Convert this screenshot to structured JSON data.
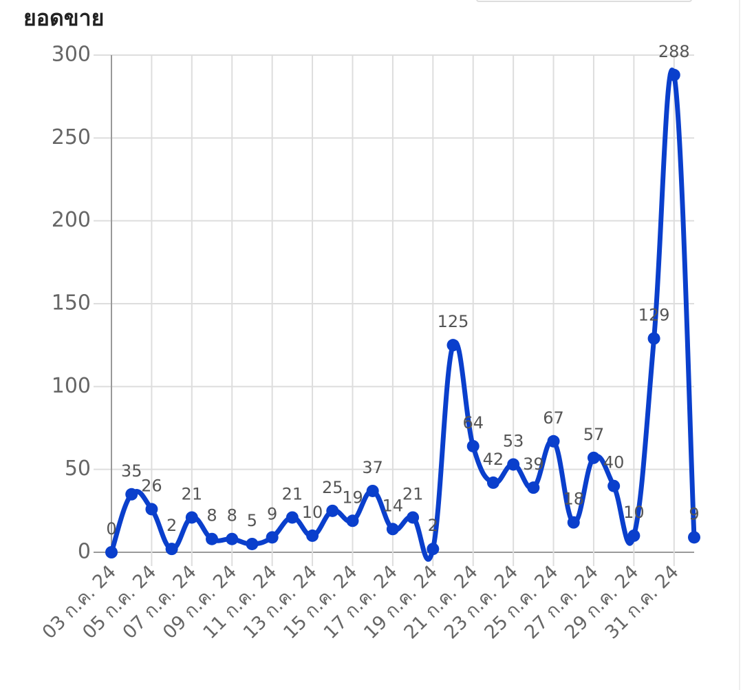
{
  "chart_data": {
    "type": "line",
    "title": "ยอดขาย",
    "categories": [
      "03 ก.ค. 24",
      null,
      "05 ก.ค. 24",
      null,
      "07 ก.ค. 24",
      null,
      "09 ก.ค. 24",
      null,
      "11 ก.ค. 24",
      null,
      "13 ก.ค. 24",
      null,
      "15 ก.ค. 24",
      null,
      "17 ก.ค. 24",
      null,
      "19 ก.ค. 24",
      null,
      "21 ก.ค. 24",
      null,
      "23 ก.ค. 24",
      null,
      "25 ก.ค. 24",
      null,
      "27 ก.ค. 24",
      null,
      "29 ก.ค. 24",
      null,
      "31 ก.ค. 24",
      null
    ],
    "series": [
      {
        "color": "#0a3fcc",
        "values": [
          0,
          35,
          26,
          2,
          21,
          8,
          8,
          5,
          9,
          21,
          10,
          25,
          19,
          37,
          14,
          21,
          2,
          125,
          64,
          42,
          53,
          39,
          67,
          18,
          57,
          40,
          10,
          129,
          288,
          9
        ]
      }
    ],
    "ylim": [
      0,
      300
    ],
    "yticks": [
      0,
      50,
      100,
      150,
      200,
      250,
      300
    ],
    "grid": true
  }
}
